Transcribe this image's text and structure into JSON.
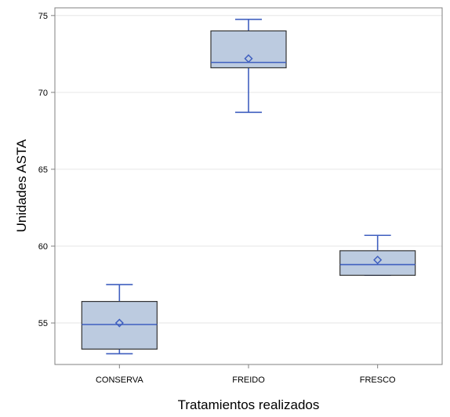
{
  "chart_data": {
    "type": "box",
    "xlabel": "Tratamientos realizados",
    "ylabel": "Unidades ASTA",
    "ylim": [
      52.3,
      75.5
    ],
    "yticks": [
      55,
      60,
      65,
      70,
      75
    ],
    "categories": [
      "CONSERVA",
      "FREIDO",
      "FRESCO"
    ],
    "boxes": [
      {
        "category": "CONSERVA",
        "whisker_low": 53.0,
        "q1": 53.3,
        "median": 54.9,
        "q3": 56.4,
        "whisker_high": 57.5,
        "mean": 55.0
      },
      {
        "category": "FREIDO",
        "whisker_low": 68.7,
        "q1": 71.6,
        "median": 71.95,
        "q3": 74.0,
        "whisker_high": 74.75,
        "mean": 72.2
      },
      {
        "category": "FRESCO",
        "whisker_low": 58.1,
        "q1": 58.1,
        "median": 58.8,
        "q3": 59.7,
        "whisker_high": 60.7,
        "mean": 59.1
      }
    ],
    "grid": true,
    "colors": {
      "box_fill": "#bccbe0",
      "box_edge": "#333333",
      "median": "#3f5fbf",
      "whisker": "#3f5fbf",
      "mean_marker": "#3f5fbf",
      "grid": "#e6e6e6",
      "frame": "#808080"
    }
  }
}
